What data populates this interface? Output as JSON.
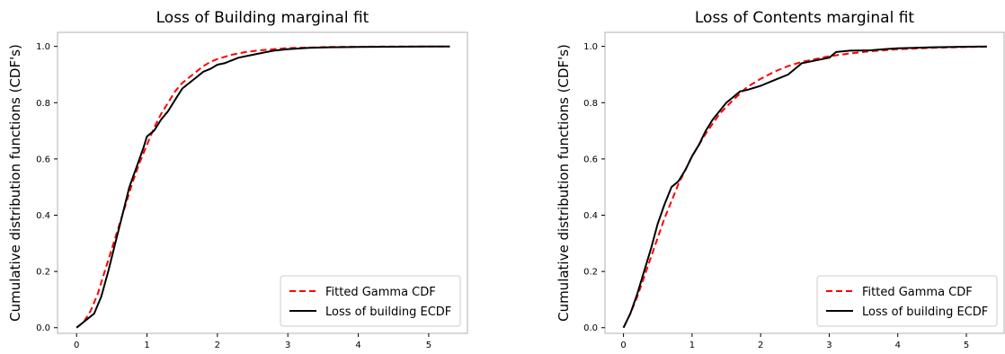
{
  "chart_data": [
    {
      "type": "line",
      "title": "Loss of Building marginal fit",
      "xlabel": "",
      "ylabel": "Cumulative distribution functions (CDF's)",
      "xlim": [
        -0.27,
        5.55
      ],
      "ylim": [
        -0.02,
        1.05
      ],
      "xticks": [
        0,
        1,
        2,
        3,
        4,
        5
      ],
      "yticks": [
        0.0,
        0.2,
        0.4,
        0.6,
        0.8,
        1.0
      ],
      "xtick_labels": [
        "0",
        "1",
        "2",
        "3",
        "4",
        "5"
      ],
      "ytick_labels": [
        "0.0",
        "0.2",
        "0.4",
        "0.6",
        "0.8",
        "1.0"
      ],
      "grid": false,
      "legend_position": "bottom-right",
      "series": [
        {
          "name": "Fitted Gamma CDF",
          "color": "#ff0000",
          "style": "dashed",
          "x": [
            0.0,
            0.1,
            0.2,
            0.3,
            0.4,
            0.5,
            0.6,
            0.7,
            0.8,
            0.9,
            1.0,
            1.1,
            1.2,
            1.3,
            1.4,
            1.5,
            1.6,
            1.7,
            1.8,
            1.9,
            2.0,
            2.2,
            2.4,
            2.6,
            2.8,
            3.0,
            3.3,
            3.6,
            4.0,
            4.5,
            5.0,
            5.3
          ],
          "y": [
            0.0,
            0.02,
            0.06,
            0.12,
            0.2,
            0.28,
            0.36,
            0.44,
            0.52,
            0.59,
            0.65,
            0.71,
            0.76,
            0.8,
            0.84,
            0.87,
            0.89,
            0.91,
            0.93,
            0.945,
            0.955,
            0.97,
            0.98,
            0.986,
            0.99,
            0.994,
            0.996,
            0.998,
            0.999,
            1.0,
            1.0,
            1.0
          ]
        },
        {
          "name": "Loss of building ECDF",
          "color": "#000000",
          "style": "solid",
          "x": [
            0.0,
            0.1,
            0.15,
            0.25,
            0.35,
            0.45,
            0.55,
            0.65,
            0.75,
            0.85,
            0.95,
            1.0,
            1.1,
            1.2,
            1.3,
            1.4,
            1.5,
            1.6,
            1.7,
            1.8,
            1.9,
            2.0,
            2.1,
            2.2,
            2.3,
            2.5,
            2.7,
            2.8,
            3.0,
            3.3,
            3.6,
            4.0,
            4.5,
            5.0,
            5.3
          ],
          "y": [
            0.0,
            0.02,
            0.03,
            0.05,
            0.11,
            0.2,
            0.3,
            0.4,
            0.5,
            0.57,
            0.64,
            0.68,
            0.7,
            0.74,
            0.77,
            0.81,
            0.85,
            0.87,
            0.89,
            0.91,
            0.92,
            0.935,
            0.94,
            0.95,
            0.96,
            0.97,
            0.98,
            0.985,
            0.99,
            0.995,
            0.997,
            0.998,
            0.999,
            1.0,
            1.0
          ]
        }
      ]
    },
    {
      "type": "line",
      "title": "Loss of Contents marginal fit",
      "xlabel": "",
      "ylabel": "Cumulative distribution functions (CDF's)",
      "xlim": [
        -0.27,
        5.55
      ],
      "ylim": [
        -0.02,
        1.05
      ],
      "xticks": [
        0,
        1,
        2,
        3,
        4,
        5
      ],
      "yticks": [
        0.0,
        0.2,
        0.4,
        0.6,
        0.8,
        1.0
      ],
      "xtick_labels": [
        "0",
        "1",
        "2",
        "3",
        "4",
        "5"
      ],
      "ytick_labels": [
        "0.0",
        "0.2",
        "0.4",
        "0.6",
        "0.8",
        "1.0"
      ],
      "grid": false,
      "legend_position": "bottom-right",
      "series": [
        {
          "name": "Fitted Gamma CDF",
          "color": "#ff0000",
          "style": "dashed",
          "x": [
            0.0,
            0.1,
            0.2,
            0.3,
            0.4,
            0.5,
            0.6,
            0.7,
            0.8,
            0.9,
            1.0,
            1.2,
            1.4,
            1.6,
            1.8,
            2.0,
            2.2,
            2.4,
            2.6,
            2.8,
            3.0,
            3.3,
            3.6,
            4.0,
            4.5,
            5.0,
            5.3
          ],
          "y": [
            0.0,
            0.05,
            0.11,
            0.18,
            0.25,
            0.32,
            0.39,
            0.45,
            0.51,
            0.56,
            0.61,
            0.69,
            0.76,
            0.81,
            0.855,
            0.885,
            0.91,
            0.93,
            0.945,
            0.955,
            0.965,
            0.975,
            0.983,
            0.99,
            0.995,
            0.998,
            0.999
          ]
        },
        {
          "name": "Loss of building ECDF",
          "color": "#000000",
          "style": "solid",
          "x": [
            0.0,
            0.1,
            0.2,
            0.3,
            0.4,
            0.5,
            0.6,
            0.7,
            0.8,
            0.9,
            1.0,
            1.1,
            1.2,
            1.3,
            1.4,
            1.5,
            1.6,
            1.7,
            1.8,
            2.0,
            2.2,
            2.4,
            2.6,
            2.8,
            3.0,
            3.1,
            3.3,
            3.6,
            3.8,
            4.0,
            4.5,
            5.0,
            5.3
          ],
          "y": [
            0.0,
            0.05,
            0.12,
            0.2,
            0.28,
            0.37,
            0.44,
            0.5,
            0.52,
            0.56,
            0.61,
            0.65,
            0.7,
            0.74,
            0.77,
            0.8,
            0.82,
            0.84,
            0.845,
            0.86,
            0.88,
            0.9,
            0.94,
            0.95,
            0.96,
            0.98,
            0.985,
            0.986,
            0.99,
            0.993,
            0.997,
            0.999,
            1.0
          ]
        }
      ]
    }
  ]
}
